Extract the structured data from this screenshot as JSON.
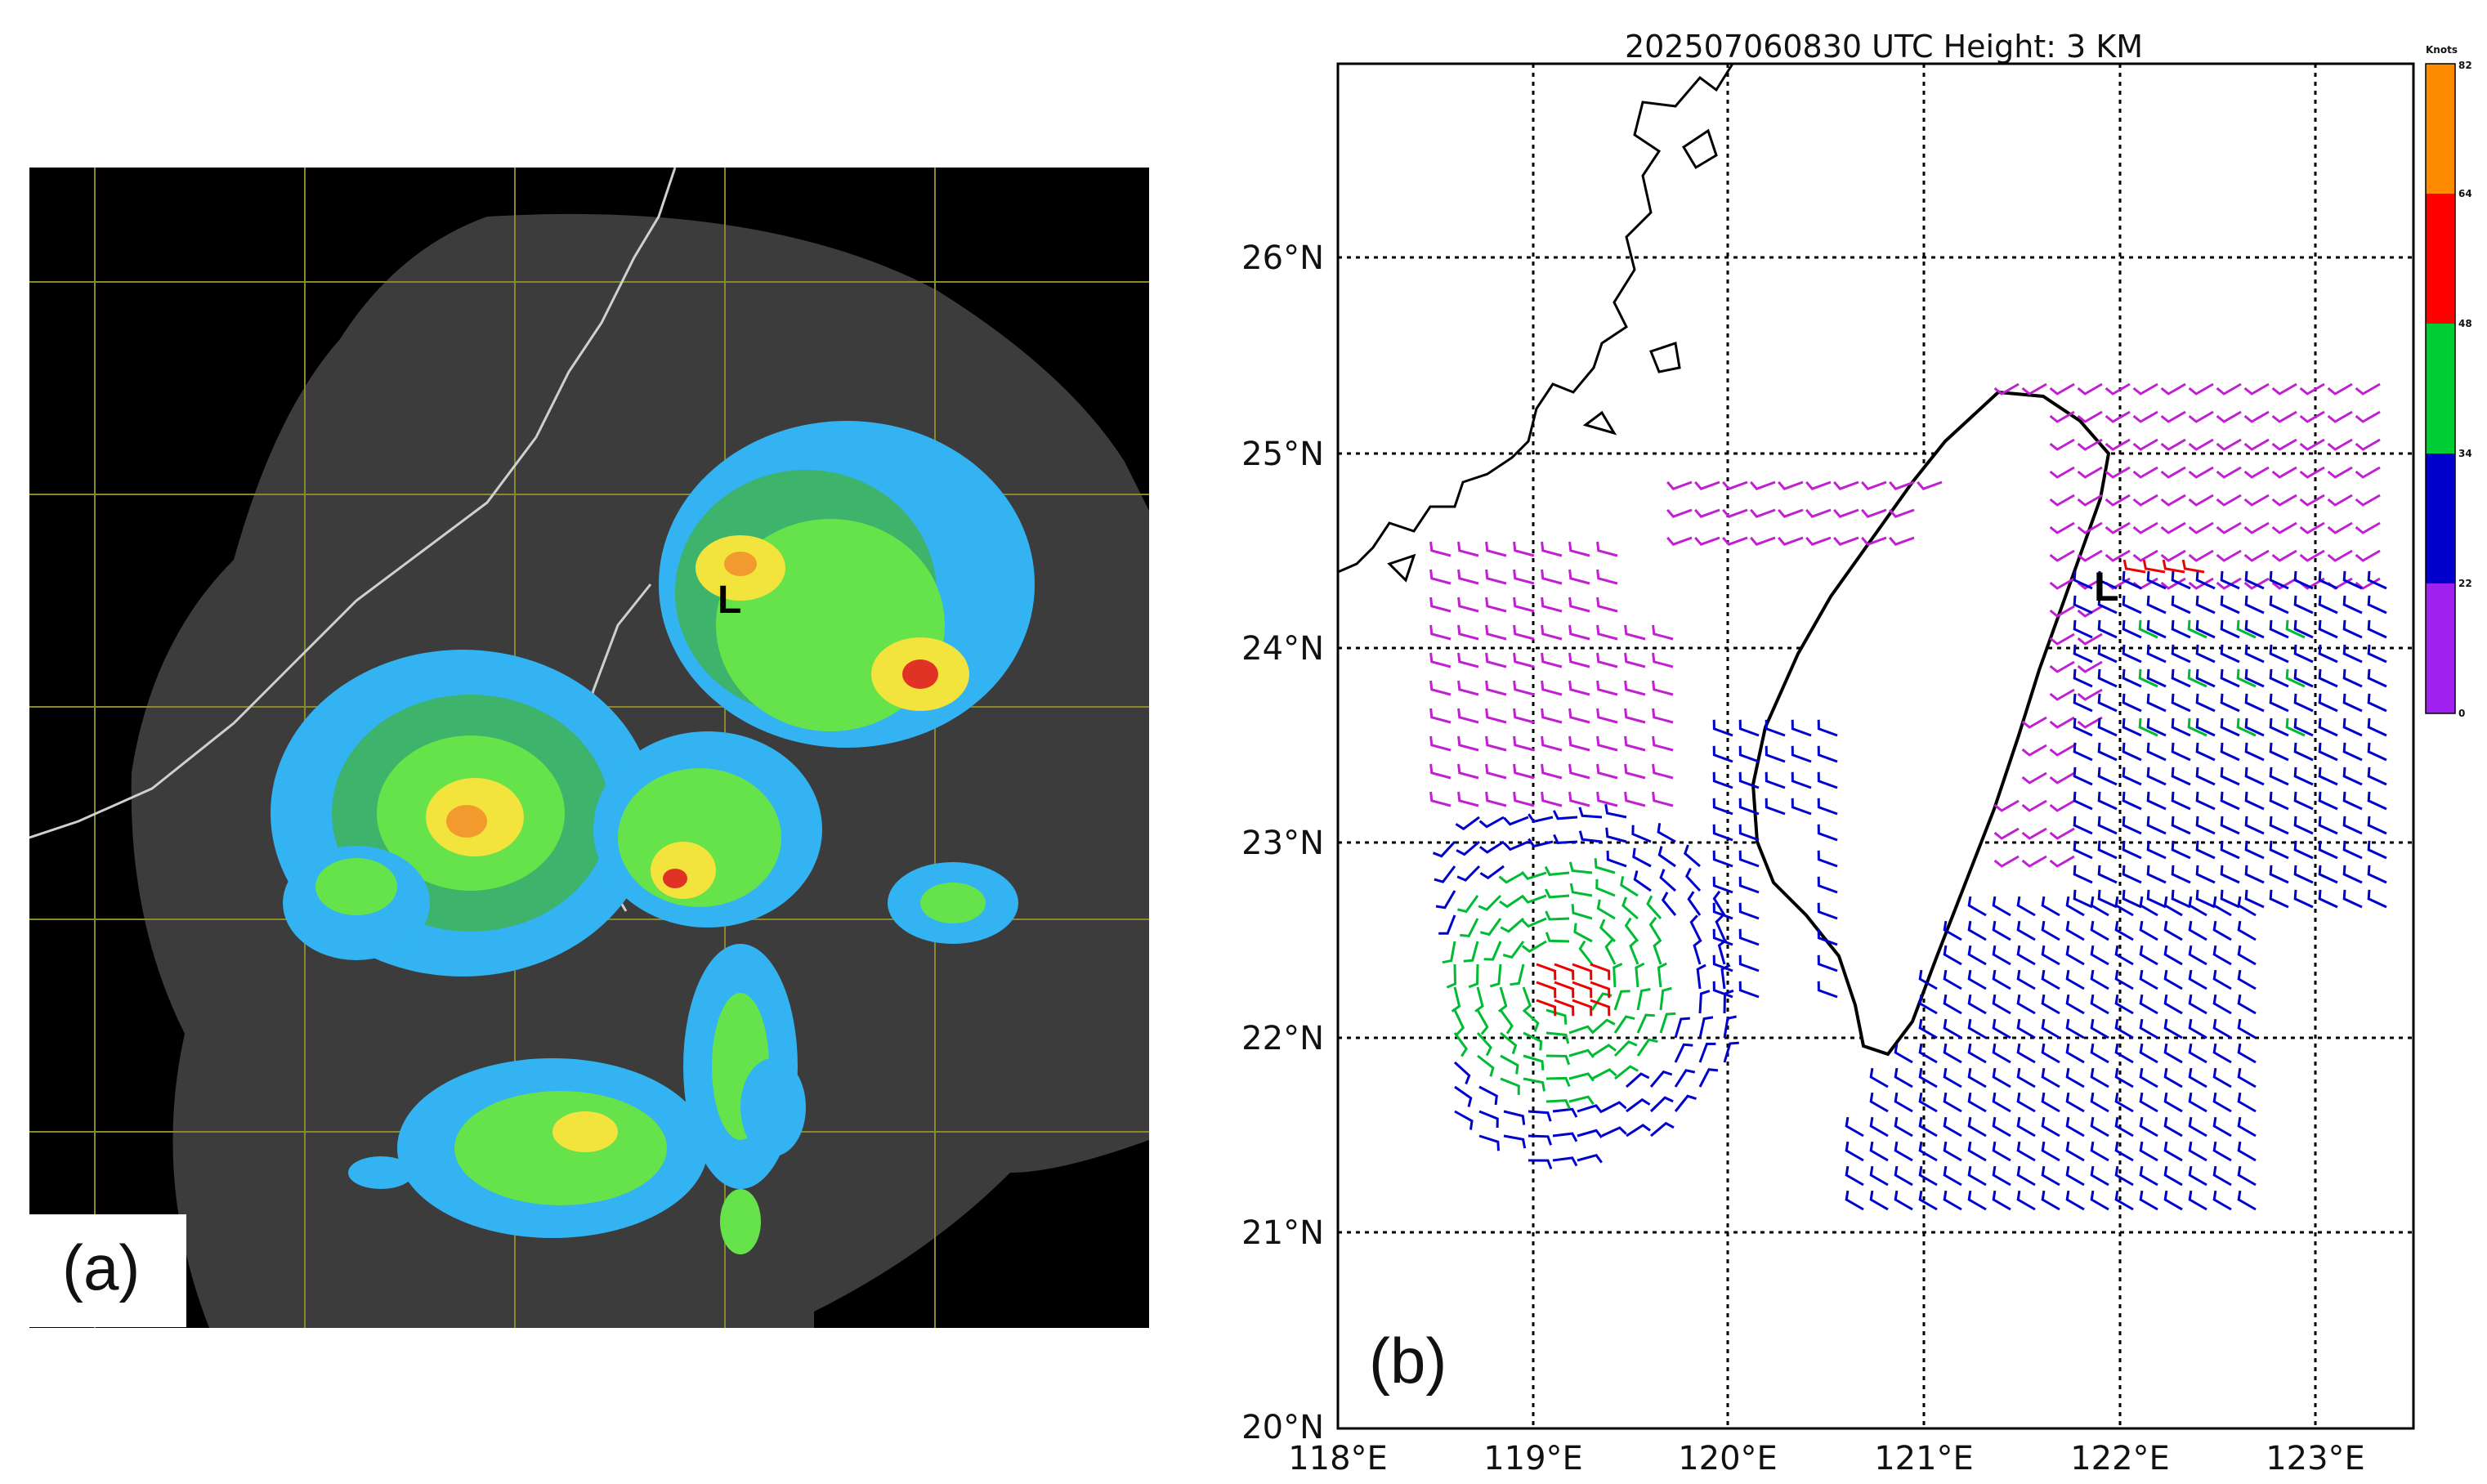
{
  "panel_a": {
    "label": "(a)",
    "low_marker": "L",
    "echo_colors": [
      "#33b3f2",
      "#3db36b",
      "#66e24a",
      "#f2e33d",
      "#f29a2e",
      "#e03325"
    ]
  },
  "panel_b": {
    "label": "(b)",
    "low_marker": "L",
    "title": "202507060830 UTC Height: 3 KM",
    "lat_labels": [
      "26°N",
      "25°N",
      "24°N",
      "23°N",
      "22°N",
      "21°N",
      "20°N"
    ],
    "lon_labels": [
      "118°E",
      "119°E",
      "120°E",
      "121°E",
      "122°E",
      "123°E"
    ],
    "colorbar": {
      "title": "Knots",
      "ticks": [
        "82",
        "64",
        "48",
        "34",
        "22",
        "0"
      ],
      "colors": [
        "#ff8c00",
        "#ff0000",
        "#00cc33",
        "#0000cc",
        "#a020f0"
      ]
    }
  }
}
